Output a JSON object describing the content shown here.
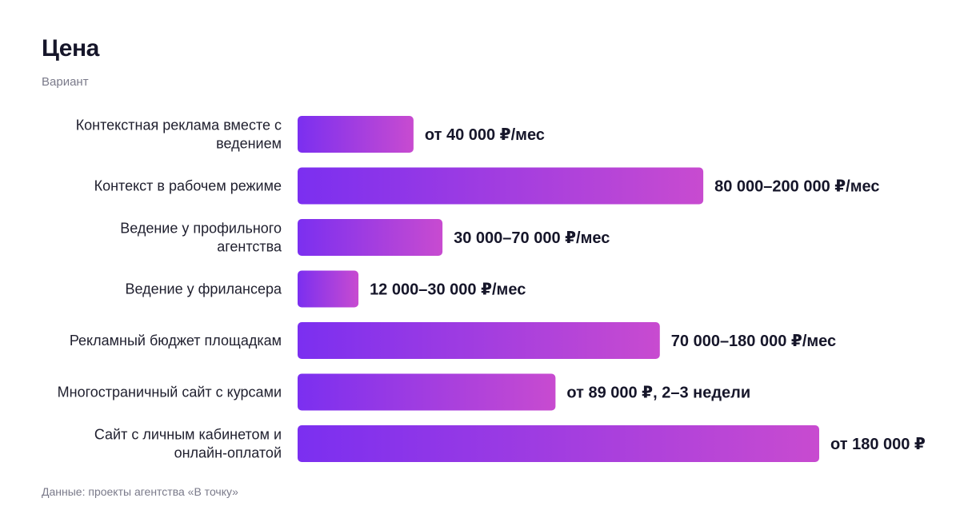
{
  "chart_data": {
    "type": "bar",
    "orientation": "horizontal",
    "title": "Цена",
    "subtitle": "Вариант",
    "categories": [
      "Контекстная реклама вместе с ведением",
      "Контекст в рабочем режиме",
      "Ведение у профильного агентства",
      "Ведение у фрилансера",
      "Рекламный бюджет площадкам",
      "Многостраничный сайт с курсами",
      "Сайт с личным кабинетом и онлайн-оплатой"
    ],
    "category_lines": [
      [
        "Контекстная реклама вместе с",
        "ведением"
      ],
      [
        "Контекст в рабочем режиме"
      ],
      [
        "Ведение у профильного",
        "агентства"
      ],
      [
        "Ведение у фрилансера"
      ],
      [
        "Рекламный бюджет площадкам"
      ],
      [
        "Многостраничный сайт с курсами"
      ],
      [
        "Сайт с личным кабинетом и",
        "онлайн-оплатой"
      ]
    ],
    "values": [
      40000,
      140000,
      50000,
      21000,
      125000,
      89000,
      180000
    ],
    "value_labels": [
      "от 40 000 ₽/мес",
      "80 000–200 000 ₽/мес",
      "30 000–70 000 ₽/мес",
      "12 000–30 000 ₽/мес",
      "70 000–180 000 ₽/мес",
      "от 89 000 ₽, 2–3 недели",
      "от 180 000 ₽"
    ],
    "xlim": [
      0,
      180000
    ],
    "grid": false,
    "legend": "none",
    "source": "Данные: проекты агентства «В точку»"
  },
  "colors": {
    "bar_gradient_start": "#7b2ff0",
    "bar_gradient_end": "#c84bd0",
    "title": "#16162a",
    "muted": "#7a7a8a"
  }
}
